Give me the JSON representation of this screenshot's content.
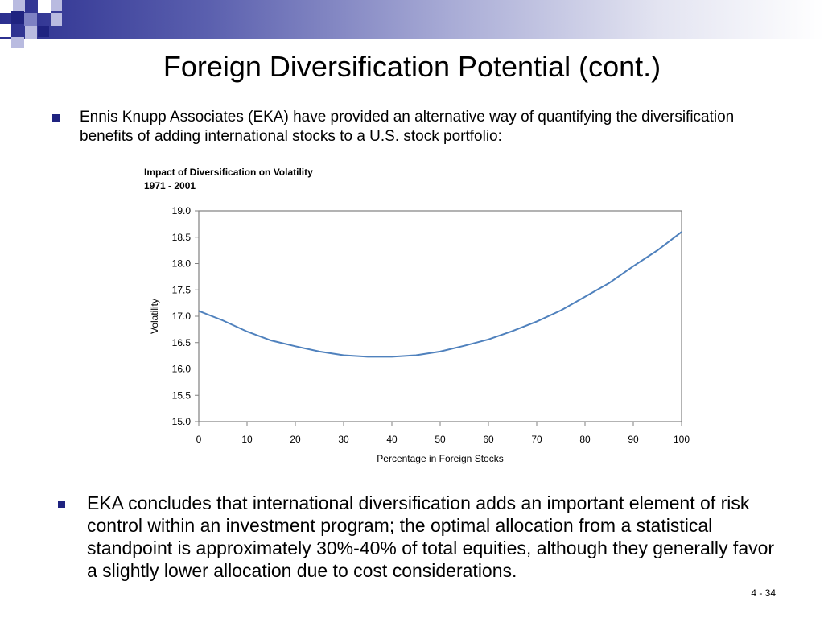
{
  "slide": {
    "title": "Foreign Diversification Potential (cont.)",
    "bullet1": "Ennis Knupp Associates (EKA) have provided an alternative way of quantifying the diversification benefits of adding international stocks to a U.S. stock portfolio:",
    "bullet2": "EKA concludes that international diversification adds an important element of risk control within an investment program; the optimal allocation from a statistical standpoint is approximately 30%-40% of total equities, although they generally favor a slightly lower allocation due to cost considerations.",
    "page_number": "4 - 34",
    "bullet_color": "#1f2380"
  },
  "chart_data": {
    "type": "line",
    "title": "Impact of Diversification on Volatility",
    "subtitle": "1971 - 2001",
    "xlabel": "Percentage in Foreign Stocks",
    "ylabel": "Volatility",
    "xlim": [
      0,
      100
    ],
    "ylim": [
      15.0,
      19.0
    ],
    "x_ticks": [
      "0",
      "10",
      "20",
      "30",
      "40",
      "50",
      "60",
      "70",
      "80",
      "90",
      "100"
    ],
    "y_ticks": [
      "15.0",
      "15.5",
      "16.0",
      "16.5",
      "17.0",
      "17.5",
      "18.0",
      "18.5",
      "19.0"
    ],
    "grid": false,
    "line_color": "#4f81bd",
    "x": [
      0,
      5,
      10,
      15,
      20,
      25,
      30,
      35,
      40,
      45,
      50,
      55,
      60,
      65,
      70,
      75,
      80,
      85,
      90,
      95,
      100
    ],
    "y": [
      17.1,
      16.92,
      16.71,
      16.54,
      16.43,
      16.33,
      16.26,
      16.23,
      16.23,
      16.26,
      16.33,
      16.44,
      16.56,
      16.72,
      16.9,
      17.11,
      17.37,
      17.63,
      17.95,
      18.25,
      18.6
    ]
  }
}
